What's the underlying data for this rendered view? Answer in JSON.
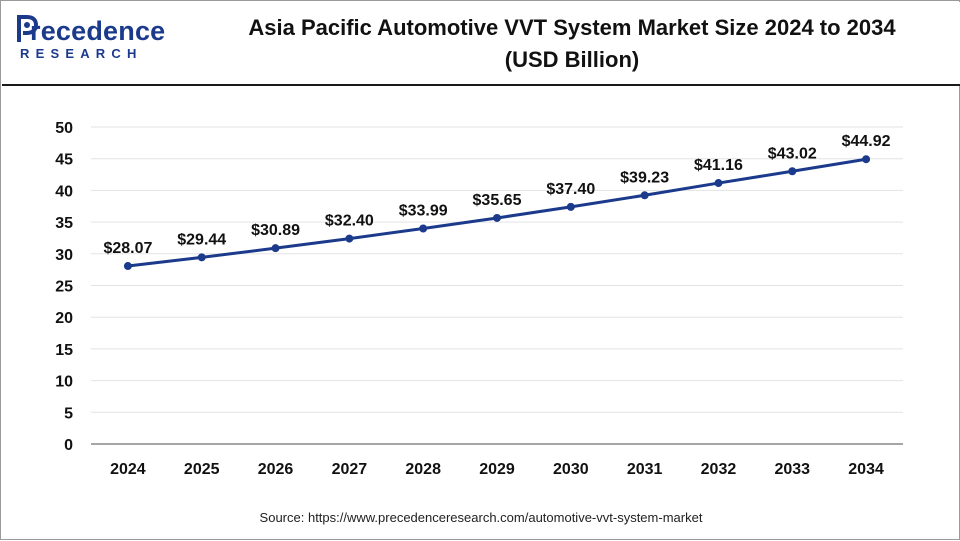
{
  "header": {
    "title_line1": "Asia Pacific Automotive VVT System Market Size 2024 to 2034",
    "title_line2": "(USD Billion)"
  },
  "logo": {
    "main": "recedence",
    "sub": "RESEARCH"
  },
  "source": "Source: https://www.precedenceresearch.com/automotive-vvt-system-market",
  "colors": {
    "line": "#1b3a8c",
    "point": "#1b3a8c",
    "grid": "#e3e3e3",
    "axis": "#888888",
    "brand": "#1b3a8c"
  },
  "chart_data": {
    "type": "line",
    "categories": [
      "2024",
      "2025",
      "2026",
      "2027",
      "2028",
      "2029",
      "2030",
      "2031",
      "2032",
      "2033",
      "2034"
    ],
    "values": [
      28.07,
      29.44,
      30.89,
      32.4,
      33.99,
      35.65,
      37.4,
      39.23,
      41.16,
      43.02,
      44.92
    ],
    "data_labels": [
      "$28.07",
      "$29.44",
      "$30.89",
      "$32.40",
      "$33.99",
      "$35.65",
      "$37.40",
      "$39.23",
      "$41.16",
      "$43.02",
      "$44.92"
    ],
    "y_ticks": [
      "0",
      "5",
      "10",
      "15",
      "20",
      "25",
      "30",
      "35",
      "40",
      "45",
      "50"
    ],
    "ylim": [
      0,
      50
    ],
    "grid": true,
    "legend": "none"
  }
}
